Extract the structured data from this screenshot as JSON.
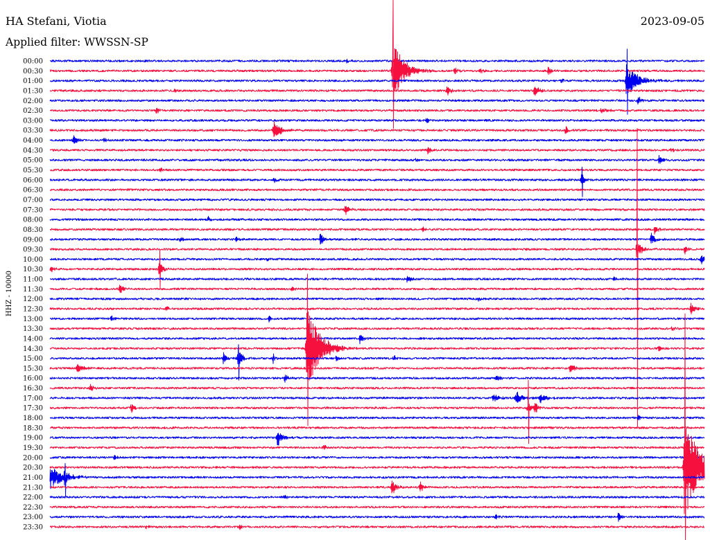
{
  "chart_data": {
    "type": "line",
    "title": "HA Stefani, Viotia",
    "subtitle": "Applied filter: WWSSN-SP",
    "date": "2023-09-05",
    "ylabel": "HHZ - 10000",
    "rows": [
      "00:00",
      "00:30",
      "01:00",
      "01:30",
      "02:00",
      "02:30",
      "03:00",
      "03:30",
      "04:00",
      "04:30",
      "05:00",
      "05:30",
      "06:00",
      "06:30",
      "07:00",
      "07:30",
      "08:00",
      "08:30",
      "09:00",
      "09:30",
      "10:00",
      "10:30",
      "11:00",
      "11:30",
      "12:00",
      "12:30",
      "13:00",
      "13:30",
      "14:00",
      "14:30",
      "15:00",
      "15:30",
      "16:00",
      "16:30",
      "17:00",
      "17:30",
      "18:00",
      "18:30",
      "19:00",
      "19:30",
      "20:00",
      "20:30",
      "21:00",
      "21:30",
      "22:00",
      "22:30",
      "23:00",
      "23:30"
    ],
    "colors": [
      "#0000f0",
      "#f5103e"
    ],
    "noise_level": 0.1,
    "events": [
      {
        "time": "00:13:36",
        "peak": 0.3,
        "duration_s": 20
      },
      {
        "time": "00:45:42",
        "peak": 3.5,
        "duration_s": 80,
        "spike": [
          7.2,
          5.8
        ]
      },
      {
        "time": "00:48:32",
        "peak": 0.35,
        "duration_s": 25
      },
      {
        "time": "00:49:44",
        "peak": 0.3,
        "duration_s": 20
      },
      {
        "time": "00:52:50",
        "peak": 0.45,
        "duration_s": 25
      },
      {
        "time": "01:23:27",
        "peak": 0.25,
        "duration_s": 15
      },
      {
        "time": "01:26:25",
        "peak": 1.8,
        "duration_s": 80,
        "spike": [
          3.2,
          3.4
        ]
      },
      {
        "time": "01:35:43",
        "peak": 0.3,
        "duration_s": 15
      },
      {
        "time": "01:48:12",
        "peak": 0.6,
        "duration_s": 25
      },
      {
        "time": "01:52:12",
        "peak": 0.7,
        "duration_s": 30
      },
      {
        "time": "02:26:57",
        "peak": 0.5,
        "duration_s": 30
      },
      {
        "time": "02:34:52",
        "peak": 0.4,
        "duration_s": 20
      },
      {
        "time": "02:55:15",
        "peak": 0.35,
        "duration_s": 40
      },
      {
        "time": "03:17:15",
        "peak": 0.3,
        "duration_s": 20
      },
      {
        "time": "03:40:15",
        "peak": 1.0,
        "duration_s": 50
      },
      {
        "time": "03:53:38",
        "peak": 0.5,
        "duration_s": 25
      },
      {
        "time": "04:01:05",
        "peak": 0.5,
        "duration_s": 30
      },
      {
        "time": "04:02:29",
        "peak": 0.3,
        "duration_s": 20
      },
      {
        "time": "04:47:19",
        "peak": 0.5,
        "duration_s": 20
      },
      {
        "time": "04:58:28",
        "peak": 0.3,
        "duration_s": 20
      },
      {
        "time": "05:16:47",
        "peak": 0.25,
        "duration_s": 20
      },
      {
        "time": "05:27:54",
        "peak": 0.5,
        "duration_s": 25
      },
      {
        "time": "05:35:01",
        "peak": 0.3,
        "duration_s": 20
      },
      {
        "time": "06:10:16",
        "peak": 0.3,
        "duration_s": 20
      },
      {
        "time": "06:24:21",
        "peak": 0.8,
        "duration_s": 25,
        "spike": [
          1.3,
          1.7
        ]
      },
      {
        "time": "07:43:32",
        "peak": 0.6,
        "duration_s": 25
      },
      {
        "time": "08:07:15",
        "peak": 0.3,
        "duration_s": 20
      },
      {
        "time": "08:47:06",
        "peak": 0.3,
        "duration_s": 20
      },
      {
        "time": "08:57:43",
        "peak": 0.6,
        "duration_s": 25
      },
      {
        "time": "09:05:58",
        "peak": 0.3,
        "duration_s": 20
      },
      {
        "time": "09:08:31",
        "peak": 0.3,
        "duration_s": 25
      },
      {
        "time": "09:12:23",
        "peak": 0.8,
        "duration_s": 25
      },
      {
        "time": "09:27:33",
        "peak": 0.7,
        "duration_s": 30
      },
      {
        "time": "09:56:53",
        "peak": 0.9,
        "duration_s": 40,
        "spike": [
          12.2,
          17.9
        ]
      },
      {
        "time": "09:59:05",
        "peak": 0.5,
        "duration_s": 25
      },
      {
        "time": "10:09:57",
        "peak": 0.2,
        "duration_s": 15
      },
      {
        "time": "10:29:50",
        "peak": 0.6,
        "duration_s": 40
      },
      {
        "time": "10:35:00",
        "peak": 0.9,
        "duration_s": 25,
        "spike": [
          2.0,
          1.9
        ]
      },
      {
        "time": "11:16:22",
        "peak": 0.4,
        "duration_s": 25
      },
      {
        "time": "11:25:50",
        "peak": 0.3,
        "duration_s": 15
      },
      {
        "time": "11:33:12",
        "peak": 0.6,
        "duration_s": 25
      },
      {
        "time": "11:41:04",
        "peak": 0.3,
        "duration_s": 20
      },
      {
        "time": "12:19:38",
        "peak": 0.2,
        "duration_s": 20
      },
      {
        "time": "12:35:20",
        "peak": 0.3,
        "duration_s": 20
      },
      {
        "time": "12:59:22",
        "peak": 0.6,
        "duration_s": 30
      },
      {
        "time": "13:02:48",
        "peak": 0.4,
        "duration_s": 20
      },
      {
        "time": "13:10:03",
        "peak": 0.4,
        "duration_s": 15
      },
      {
        "time": "13:58:30",
        "peak": 0.3,
        "duration_s": 20
      },
      {
        "time": "14:14:12",
        "peak": 0.6,
        "duration_s": 25
      },
      {
        "time": "14:41:46",
        "peak": 5.0,
        "duration_s": 90,
        "spike": [
          7.5,
          7.8
        ]
      },
      {
        "time": "14:57:54",
        "peak": 0.4,
        "duration_s": 20
      },
      {
        "time": "15:07:57",
        "peak": 0.7,
        "duration_s": 20
      },
      {
        "time": "15:08:37",
        "peak": 1.2,
        "duration_s": 30,
        "spike": [
          1.4,
          2.2
        ]
      },
      {
        "time": "15:10:14",
        "peak": 0.5,
        "duration_s": 15
      },
      {
        "time": "15:13:07",
        "peak": 0.5,
        "duration_s": 15
      },
      {
        "time": "15:15:46",
        "peak": 0.4,
        "duration_s": 15
      },
      {
        "time": "15:31:15",
        "peak": 0.5,
        "duration_s": 45
      },
      {
        "time": "15:53:50",
        "peak": 0.5,
        "duration_s": 40
      },
      {
        "time": "16:10:46",
        "peak": 0.5,
        "duration_s": 20
      },
      {
        "time": "16:20:28",
        "peak": 0.4,
        "duration_s": 25
      },
      {
        "time": "16:31:50",
        "peak": 0.5,
        "duration_s": 20
      },
      {
        "time": "17:20:18",
        "peak": 0.5,
        "duration_s": 40
      },
      {
        "time": "17:21:20",
        "peak": 0.8,
        "duration_s": 50
      },
      {
        "time": "17:22:28",
        "peak": 0.6,
        "duration_s": 40
      },
      {
        "time": "17:33:43",
        "peak": 0.7,
        "duration_s": 20
      },
      {
        "time": "17:51:54",
        "peak": 0.8,
        "duration_s": 20,
        "spike": [
          2.8,
          3.6
        ]
      },
      {
        "time": "17:52:13",
        "peak": 0.8,
        "duration_s": 20
      },
      {
        "time": "18:26:57",
        "peak": 0.3,
        "duration_s": 15
      },
      {
        "time": "19:10:25",
        "peak": 1.0,
        "duration_s": 35
      },
      {
        "time": "19:42:33",
        "peak": 0.3,
        "duration_s": 20
      },
      {
        "time": "20:02:57",
        "peak": 0.3,
        "duration_s": 20
      },
      {
        "time": "20:59:05",
        "peak": 6.0,
        "duration_s": 100,
        "spike": [
          15.5,
          7.5
        ]
      },
      {
        "time": "21:00:40",
        "peak": 0.6,
        "duration_s": 20,
        "spike": [
          1.4,
          1.9
        ]
      },
      {
        "time": "21:45:40",
        "peak": 1.0,
        "duration_s": 30
      },
      {
        "time": "21:46:58",
        "peak": 0.6,
        "duration_s": 20
      },
      {
        "time": "22:10:44",
        "peak": 0.3,
        "duration_s": 20
      },
      {
        "time": "23:20:26",
        "peak": 0.3,
        "duration_s": 20
      },
      {
        "time": "23:26:03",
        "peak": 0.6,
        "duration_s": 15
      },
      {
        "time": "23:34:23",
        "peak": 0.3,
        "duration_s": 20
      },
      {
        "time": "23:38:41",
        "peak": 0.3,
        "duration_s": 20
      }
    ]
  }
}
